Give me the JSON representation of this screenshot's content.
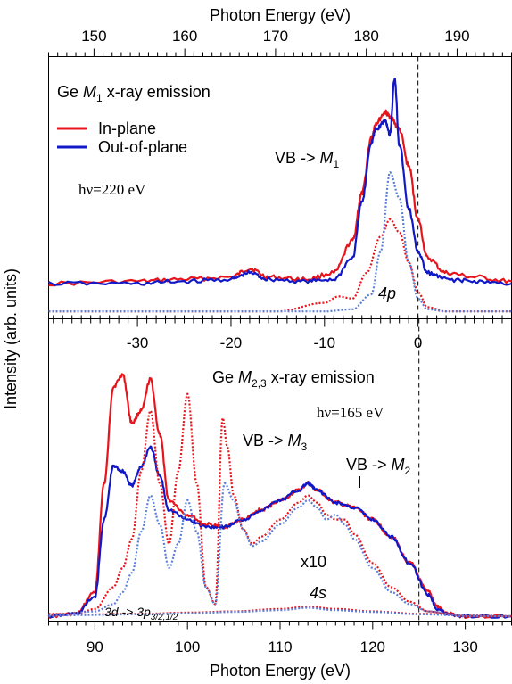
{
  "chart_data": [
    {
      "panel": "top",
      "type": "line",
      "title": "Ge M1 x-ray emission",
      "title_parts": [
        "Ge ",
        "M",
        "1",
        " x-ray emission"
      ],
      "excitation": "hν=220 eV",
      "xlabel_top": "Photon Energy (eV)",
      "x_top_ticks": [
        "150",
        "160",
        "170",
        "180",
        "190"
      ],
      "x_top_lim": [
        145,
        196
      ],
      "x_rel_ticks": [
        "-30",
        "-20",
        "-10",
        "0"
      ],
      "x_rel_lim": [
        -39.5,
        10
      ],
      "fermi_line_x_rel": 0,
      "legend": [
        "In-plane",
        "Out-of-plane"
      ],
      "legend_position": "top-left",
      "annotations": {
        "vb_m1": [
          "VB -> ",
          "M",
          "1"
        ],
        "p4": "4p"
      },
      "series": [
        {
          "name": "In-plane",
          "color": "#e8141c",
          "style": "solid",
          "x": [
            -39.5,
            -30,
            -25,
            -20,
            -18,
            -16,
            -12,
            -9,
            -7,
            -6,
            -5,
            -4.5,
            -3.5,
            -3,
            -2,
            -1,
            0,
            1,
            3,
            6,
            10
          ],
          "y": [
            0.0,
            0.01,
            0.02,
            0.03,
            0.07,
            0.03,
            0.02,
            0.05,
            0.2,
            0.42,
            0.68,
            0.75,
            0.8,
            0.78,
            0.72,
            0.55,
            0.3,
            0.12,
            0.05,
            0.03,
            0.01
          ]
        },
        {
          "name": "Out-of-plane",
          "color": "#1018c8",
          "style": "solid",
          "x": [
            -39.5,
            -30,
            -25,
            -20,
            -18,
            -16,
            -12,
            -9,
            -7,
            -6,
            -5,
            -4.5,
            -3.5,
            -3,
            -2.5,
            -2,
            -1,
            0,
            1,
            3,
            6,
            10
          ],
          "y": [
            0.0,
            0.0,
            0.01,
            0.02,
            0.05,
            0.02,
            0.01,
            0.02,
            0.12,
            0.38,
            0.66,
            0.72,
            0.76,
            0.7,
            0.96,
            0.65,
            0.35,
            0.15,
            0.05,
            0.02,
            0.01,
            0.0
          ]
        },
        {
          "name": "",
          "color": "#e8141c",
          "style": "dotted",
          "x": [
            -39.5,
            -25,
            -15,
            -10,
            -8.5,
            -7,
            -5.5,
            -4,
            -3,
            -2,
            -1,
            0,
            1,
            3,
            10
          ],
          "y": [
            -0.13,
            -0.13,
            -0.13,
            -0.09,
            -0.06,
            -0.07,
            0.05,
            0.22,
            0.3,
            0.24,
            0.1,
            -0.04,
            -0.11,
            -0.13,
            -0.13
          ]
        },
        {
          "name": "",
          "color": "#5b7fd8",
          "style": "dotted",
          "x": [
            -39.5,
            -20,
            -10,
            -7,
            -5,
            -4,
            -3,
            -2,
            -1,
            0,
            1,
            3,
            10
          ],
          "y": [
            -0.13,
            -0.13,
            -0.13,
            -0.12,
            -0.05,
            0.15,
            0.52,
            0.4,
            0.1,
            -0.07,
            -0.12,
            -0.13,
            -0.13
          ]
        }
      ]
    },
    {
      "panel": "bottom",
      "type": "line",
      "title": "Ge M2,3 x-ray emission",
      "title_parts": [
        "Ge ",
        "M",
        "2,3",
        " x-ray emission"
      ],
      "excitation": "hν=165 eV",
      "xlabel": "Photon Energy (eV)",
      "x_ticks": [
        "90",
        "100",
        "110",
        "120",
        "130"
      ],
      "xlim": [
        85,
        135
      ],
      "fermi_line_x": 125,
      "annotations": {
        "vb_m3": [
          "VB -> ",
          "M",
          "3"
        ],
        "vb_m2": [
          "VB -> ",
          "M",
          "2"
        ],
        "x10": "x10",
        "s4": "4s",
        "d3": [
          "3d -> 3p",
          "3/2,1/2"
        ]
      },
      "series": [
        {
          "name": "In-plane",
          "color": "#e8141c",
          "style": "solid",
          "x": [
            85,
            88,
            90,
            91,
            92,
            93,
            94,
            95,
            96,
            97,
            98,
            100,
            102,
            104,
            106,
            108,
            110,
            112,
            113,
            114,
            116,
            118,
            120,
            122,
            124,
            126,
            127,
            128,
            130,
            135
          ],
          "y": [
            0.0,
            0.01,
            0.1,
            0.55,
            0.95,
            1.0,
            0.8,
            0.85,
            0.98,
            0.75,
            0.48,
            0.42,
            0.38,
            0.37,
            0.4,
            0.44,
            0.48,
            0.52,
            0.55,
            0.52,
            0.47,
            0.45,
            0.4,
            0.33,
            0.22,
            0.1,
            0.04,
            0.01,
            0.0,
            0.0
          ]
        },
        {
          "name": "Out-of-plane",
          "color": "#1018c8",
          "style": "solid",
          "x": [
            85,
            88,
            90,
            91,
            92,
            93,
            94,
            95,
            96,
            97,
            98,
            100,
            102,
            104,
            106,
            108,
            110,
            112,
            113,
            114,
            116,
            118,
            120,
            122,
            124,
            126,
            127,
            128,
            130,
            135
          ],
          "y": [
            0.0,
            0.01,
            0.08,
            0.4,
            0.62,
            0.6,
            0.54,
            0.62,
            0.7,
            0.58,
            0.44,
            0.4,
            0.37,
            0.37,
            0.4,
            0.44,
            0.48,
            0.52,
            0.55,
            0.52,
            0.47,
            0.45,
            0.4,
            0.33,
            0.22,
            0.09,
            0.03,
            0.01,
            0.0,
            0.0
          ]
        },
        {
          "name": "",
          "color": "#e8141c",
          "style": "dotted",
          "x": [
            85,
            88,
            90,
            92,
            93,
            94,
            95,
            96,
            97,
            98,
            99,
            100,
            101,
            102,
            103,
            103.8,
            104.3,
            105,
            106,
            107,
            108,
            110,
            112,
            113,
            114,
            115,
            116,
            117,
            118,
            120,
            122,
            124,
            126,
            128,
            130,
            135
          ],
          "y": [
            0.01,
            0.01,
            0.03,
            0.12,
            0.2,
            0.32,
            0.6,
            0.85,
            0.55,
            0.3,
            0.6,
            0.92,
            0.55,
            0.12,
            0.05,
            0.82,
            0.7,
            0.5,
            0.36,
            0.3,
            0.33,
            0.4,
            0.47,
            0.5,
            0.47,
            0.42,
            0.4,
            0.4,
            0.34,
            0.22,
            0.12,
            0.06,
            0.02,
            0.01,
            0.0,
            0.0
          ]
        },
        {
          "name": "",
          "color": "#5b7fd8",
          "style": "dotted",
          "x": [
            85,
            90,
            92,
            93,
            94,
            95,
            96,
            97,
            98,
            99,
            100,
            101,
            102,
            103,
            104,
            105,
            106,
            107,
            108,
            110,
            112,
            113,
            114,
            115,
            116,
            117,
            118,
            120,
            122,
            124,
            126,
            130,
            135
          ],
          "y": [
            0.0,
            0.02,
            0.05,
            0.1,
            0.18,
            0.35,
            0.5,
            0.38,
            0.2,
            0.3,
            0.48,
            0.35,
            0.12,
            0.05,
            0.55,
            0.48,
            0.36,
            0.29,
            0.31,
            0.38,
            0.45,
            0.48,
            0.45,
            0.4,
            0.42,
            0.38,
            0.32,
            0.2,
            0.1,
            0.05,
            0.02,
            0.0,
            0.0
          ]
        },
        {
          "name": "",
          "color": "#e8141c",
          "style": "dotted",
          "x": [
            85,
            95,
            100,
            105,
            110,
            113,
            116,
            120,
            125,
            130,
            135
          ],
          "y": [
            0.005,
            0.01,
            0.015,
            0.02,
            0.03,
            0.04,
            0.03,
            0.02,
            0.01,
            0.005,
            0.0
          ]
        },
        {
          "name": "",
          "color": "#5b7fd8",
          "style": "dotted",
          "x": [
            85,
            95,
            100,
            105,
            110,
            113,
            116,
            120,
            125,
            130,
            135
          ],
          "y": [
            0.003,
            0.008,
            0.012,
            0.018,
            0.025,
            0.035,
            0.025,
            0.018,
            0.008,
            0.003,
            0.0
          ]
        }
      ]
    }
  ],
  "ylabel": "Intensity (arb. units)"
}
